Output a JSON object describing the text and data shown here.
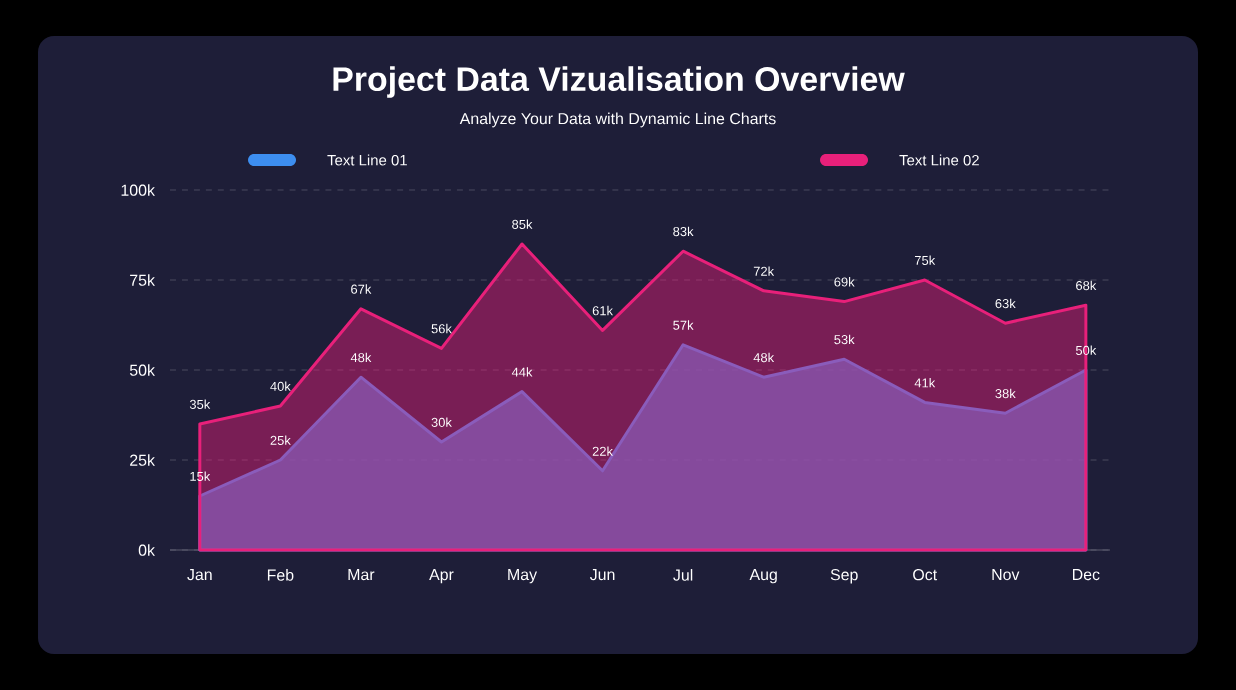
{
  "chart_data": {
    "type": "area",
    "title": "Project Data Vizualisation Overview",
    "subtitle": "Analyze Your Data with Dynamic Line Charts",
    "categories": [
      "Jan",
      "Feb",
      "Mar",
      "Apr",
      "May",
      "Jun",
      "Jul",
      "Aug",
      "Sep",
      "Oct",
      "Nov",
      "Dec"
    ],
    "series": [
      {
        "name": "Text Line 01",
        "color": "#3d8ef0",
        "values": [
          15,
          25,
          48,
          30,
          44,
          22,
          57,
          48,
          53,
          41,
          38,
          50
        ],
        "value_labels": [
          "15k",
          "25k",
          "48k",
          "30k",
          "44k",
          "22k",
          "57k",
          "48k",
          "53k",
          "41k",
          "38k",
          "50k"
        ]
      },
      {
        "name": "Text Line 02",
        "color": "#e8207a",
        "values": [
          35,
          40,
          67,
          56,
          85,
          61,
          83,
          72,
          69,
          75,
          63,
          68
        ],
        "value_labels": [
          "35k",
          "40k",
          "67k",
          "56k",
          "85k",
          "61k",
          "83k",
          "72k",
          "69k",
          "75k",
          "63k",
          "68k"
        ]
      }
    ],
    "ylim": [
      0,
      100
    ],
    "yticks": [
      {
        "value": 0,
        "label": "0k"
      },
      {
        "value": 25,
        "label": "25k"
      },
      {
        "value": 50,
        "label": "50k"
      },
      {
        "value": 75,
        "label": "75k"
      },
      {
        "value": 100,
        "label": "100k"
      }
    ],
    "grid": "y",
    "legend": "top"
  }
}
